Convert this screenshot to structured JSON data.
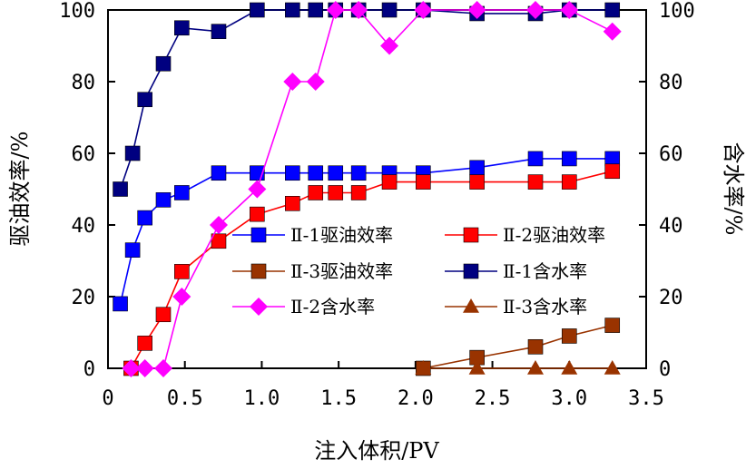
{
  "chart_data": {
    "type": "line",
    "xlabel": "注入体积/PV",
    "ylabel_left": "驱油效率/%",
    "ylabel_right": "含水率/%",
    "xlim": [
      0,
      3.5
    ],
    "ylim": [
      0,
      100
    ],
    "xticks": [
      "0",
      "0.5",
      "1.0",
      "1.5",
      "2.0",
      "2.5",
      "3.0",
      "3.5"
    ],
    "yticks": [
      "0",
      "20",
      "40",
      "60",
      "80",
      "100"
    ],
    "legend_position": "center-right",
    "series": [
      {
        "name": "Ⅱ-1驱油效率",
        "color": "#0000ff",
        "marker": "square",
        "x": [
          0.08,
          0.16,
          0.24,
          0.36,
          0.48,
          0.72,
          0.97,
          1.2,
          1.35,
          1.48,
          1.63,
          1.83,
          2.05,
          2.4,
          2.78,
          3.0,
          3.28
        ],
        "y": [
          18,
          33,
          42,
          47,
          49,
          54.5,
          54.5,
          54.5,
          54.5,
          54.5,
          54.5,
          54.5,
          54.5,
          56,
          58.5,
          58.5,
          58.5
        ]
      },
      {
        "name": "Ⅱ-2驱油效率",
        "color": "#ff0000",
        "marker": "square",
        "x": [
          0.15,
          0.24,
          0.36,
          0.48,
          0.72,
          0.97,
          1.2,
          1.35,
          1.48,
          1.63,
          1.83,
          2.05,
          2.4,
          2.78,
          3.0,
          3.28
        ],
        "y": [
          0,
          7,
          15,
          27,
          35.5,
          43,
          46,
          49,
          49,
          49,
          52,
          52,
          52,
          52,
          52,
          55
        ]
      },
      {
        "name": "Ⅱ-3驱油效率",
        "color": "#993300",
        "marker": "square",
        "x": [
          2.05,
          2.4,
          2.78,
          3.0,
          3.28
        ],
        "y": [
          0,
          3,
          6,
          9,
          12
        ]
      },
      {
        "name": "Ⅱ-1含水率",
        "color": "#000080",
        "marker": "square",
        "x": [
          0.08,
          0.16,
          0.24,
          0.36,
          0.48,
          0.72,
          0.97,
          1.2,
          1.35,
          1.48,
          1.63,
          1.83,
          2.05,
          2.4,
          2.78,
          3.0,
          3.28
        ],
        "y": [
          50,
          60,
          75,
          85,
          95,
          94,
          100,
          100,
          100,
          100,
          100,
          100,
          100,
          99,
          99,
          100,
          100
        ]
      },
      {
        "name": "Ⅱ-2含水率",
        "color": "#ff00ff",
        "marker": "diamond",
        "x": [
          0.15,
          0.24,
          0.36,
          0.48,
          0.72,
          0.97,
          1.2,
          1.35,
          1.48,
          1.63,
          1.83,
          2.05,
          2.4,
          2.78,
          3.0,
          3.28
        ],
        "y": [
          0,
          0,
          0,
          20,
          40,
          50,
          80,
          80,
          100,
          100,
          90,
          100,
          100,
          100,
          100,
          94
        ]
      },
      {
        "name": "Ⅱ-3含水率",
        "color": "#993300",
        "marker": "triangle",
        "x": [
          2.05,
          2.4,
          2.78,
          3.0,
          3.28
        ],
        "y": [
          0,
          0,
          0,
          0,
          0
        ]
      }
    ]
  }
}
